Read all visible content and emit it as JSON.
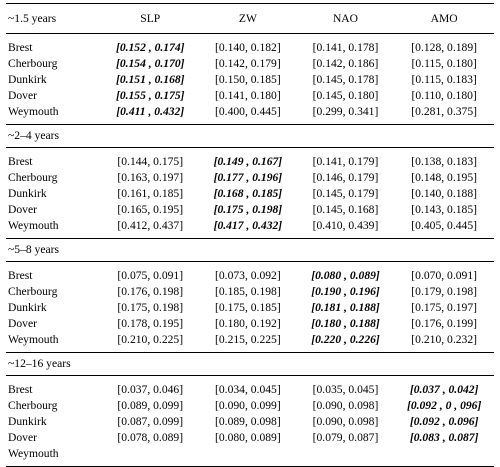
{
  "columns": [
    "~1.5 years",
    "SLP",
    "ZW",
    "NAO",
    "AMO"
  ],
  "sections": [
    {
      "label": "~1.5 years",
      "rows": [
        {
          "site": "Brest",
          "cells": [
            {
              "text": "[0.152 , 0.174]",
              "hl": true
            },
            {
              "text": "[0.140, 0.182]",
              "hl": false
            },
            {
              "text": "[0.141, 0.178]",
              "hl": false
            },
            {
              "text": "[0.128, 0.189]",
              "hl": false
            }
          ]
        },
        {
          "site": "Cherbourg",
          "cells": [
            {
              "text": "[0.154 , 0.170]",
              "hl": true
            },
            {
              "text": "[0.142, 0.179]",
              "hl": false
            },
            {
              "text": "[0.142, 0.186]",
              "hl": false
            },
            {
              "text": "[0.115, 0.180]",
              "hl": false
            }
          ]
        },
        {
          "site": "Dunkirk",
          "cells": [
            {
              "text": "[0.151 , 0.168]",
              "hl": true
            },
            {
              "text": "[0.150, 0.185]",
              "hl": false
            },
            {
              "text": "[0.145, 0.178]",
              "hl": false
            },
            {
              "text": "[0.115, 0.183]",
              "hl": false
            }
          ]
        },
        {
          "site": "Dover",
          "cells": [
            {
              "text": "[0.155 , 0.175]",
              "hl": true
            },
            {
              "text": "[0.141, 0.180]",
              "hl": false
            },
            {
              "text": "[0.145, 0.180]",
              "hl": false
            },
            {
              "text": "[0.110, 0.180]",
              "hl": false
            }
          ]
        },
        {
          "site": "Weymouth",
          "cells": [
            {
              "text": "[0.411 , 0.432]",
              "hl": true
            },
            {
              "text": "[0.400, 0.445]",
              "hl": false
            },
            {
              "text": "[0.299, 0.341]",
              "hl": false
            },
            {
              "text": "[0.281, 0.375]",
              "hl": false
            }
          ]
        }
      ]
    },
    {
      "label": "~2–4 years",
      "rows": [
        {
          "site": "Brest",
          "cells": [
            {
              "text": "[0.144, 0.175]",
              "hl": false
            },
            {
              "text": "[0.149 , 0.167]",
              "hl": true
            },
            {
              "text": "[0.141, 0.179]",
              "hl": false
            },
            {
              "text": "[0.138, 0.183]",
              "hl": false
            }
          ]
        },
        {
          "site": "Cherbourg",
          "cells": [
            {
              "text": "[0.163, 0.197]",
              "hl": false
            },
            {
              "text": "[0.177 , 0.196]",
              "hl": true
            },
            {
              "text": "[0.146, 0.179]",
              "hl": false
            },
            {
              "text": "[0.148, 0.195]",
              "hl": false
            }
          ]
        },
        {
          "site": "Dunkirk",
          "cells": [
            {
              "text": "[0.161, 0.185]",
              "hl": false
            },
            {
              "text": "[0.168 , 0.185]",
              "hl": true
            },
            {
              "text": "[0.145, 0.179]",
              "hl": false
            },
            {
              "text": "[0.140, 0.188]",
              "hl": false
            }
          ]
        },
        {
          "site": "Dover",
          "cells": [
            {
              "text": "[0.165, 0.195]",
              "hl": false
            },
            {
              "text": "[0.175 , 0.198]",
              "hl": true
            },
            {
              "text": "[0.145, 0.168]",
              "hl": false
            },
            {
              "text": "[0.143, 0.185]",
              "hl": false
            }
          ]
        },
        {
          "site": "Weymouth",
          "cells": [
            {
              "text": "[0.412, 0.437]",
              "hl": false
            },
            {
              "text": "[0.417 , 0.432]",
              "hl": true
            },
            {
              "text": "[0.410, 0.439]",
              "hl": false
            },
            {
              "text": "[0.405, 0.445]",
              "hl": false
            }
          ]
        }
      ]
    },
    {
      "label": "~5–8 years",
      "rows": [
        {
          "site": "Brest",
          "cells": [
            {
              "text": "[0.075, 0.091]",
              "hl": false
            },
            {
              "text": "[0.073, 0.092]",
              "hl": false
            },
            {
              "text": "[0.080 , 0.089]",
              "hl": true
            },
            {
              "text": "[0.070, 0.091]",
              "hl": false
            }
          ]
        },
        {
          "site": "Cherbourg",
          "cells": [
            {
              "text": "[0.176, 0.198]",
              "hl": false
            },
            {
              "text": "[0.185, 0.198]",
              "hl": false
            },
            {
              "text": "[0.190 , 0.196]",
              "hl": true
            },
            {
              "text": "[0.179, 0.198]",
              "hl": false
            }
          ]
        },
        {
          "site": "Dunkirk",
          "cells": [
            {
              "text": "[0.175, 0.198]",
              "hl": false
            },
            {
              "text": "[0.175, 0.185]",
              "hl": false
            },
            {
              "text": "[0.181 , 0.188]",
              "hl": true
            },
            {
              "text": "[0.175, 0.197]",
              "hl": false
            }
          ]
        },
        {
          "site": "Dover",
          "cells": [
            {
              "text": "[0.178, 0.195]",
              "hl": false
            },
            {
              "text": "[0.180, 0.192]",
              "hl": false
            },
            {
              "text": "[0.180 , 0.188]",
              "hl": true
            },
            {
              "text": "[0.176, 0.199]",
              "hl": false
            }
          ]
        },
        {
          "site": "Weymouth",
          "cells": [
            {
              "text": "[0.210, 0.225]",
              "hl": false
            },
            {
              "text": "[0.215, 0.225]",
              "hl": false
            },
            {
              "text": "[0.220 , 0.226]",
              "hl": true
            },
            {
              "text": "[0.210, 0.232]",
              "hl": false
            }
          ]
        }
      ]
    },
    {
      "label": "~12–16 years",
      "rows": [
        {
          "site": "Brest",
          "cells": [
            {
              "text": "[0.037, 0.046]",
              "hl": false
            },
            {
              "text": "[0.034, 0.045]",
              "hl": false
            },
            {
              "text": "[0.035, 0.045]",
              "hl": false
            },
            {
              "text": "[0.037 , 0.042]",
              "hl": true
            }
          ]
        },
        {
          "site": "Cherbourg",
          "cells": [
            {
              "text": "[0.089, 0.099]",
              "hl": false
            },
            {
              "text": "[0.090, 0.099]",
              "hl": false
            },
            {
              "text": "[0.090, 0.098]",
              "hl": false
            },
            {
              "text": "[0.092 , 0 , 096]",
              "hl": true
            }
          ]
        },
        {
          "site": "Dunkirk",
          "cells": [
            {
              "text": "[0.087, 0.099]",
              "hl": false
            },
            {
              "text": "[0.089, 0.098]",
              "hl": false
            },
            {
              "text": "[0.090, 0.098]",
              "hl": false
            },
            {
              "text": "[0.092 , 0.096]",
              "hl": true
            }
          ]
        },
        {
          "site": "Dover",
          "cells": [
            {
              "text": "[0.078, 0.089]",
              "hl": false
            },
            {
              "text": "[0.080, 0.089]",
              "hl": false
            },
            {
              "text": "[0.079, 0.087]",
              "hl": false
            },
            {
              "text": "[0.083 , 0.087]",
              "hl": true
            }
          ]
        },
        {
          "site": "Weymouth",
          "cells": [
            {
              "text": "",
              "hl": false
            },
            {
              "text": "",
              "hl": false
            },
            {
              "text": "",
              "hl": false
            },
            {
              "text": "",
              "hl": false
            }
          ]
        }
      ]
    }
  ]
}
